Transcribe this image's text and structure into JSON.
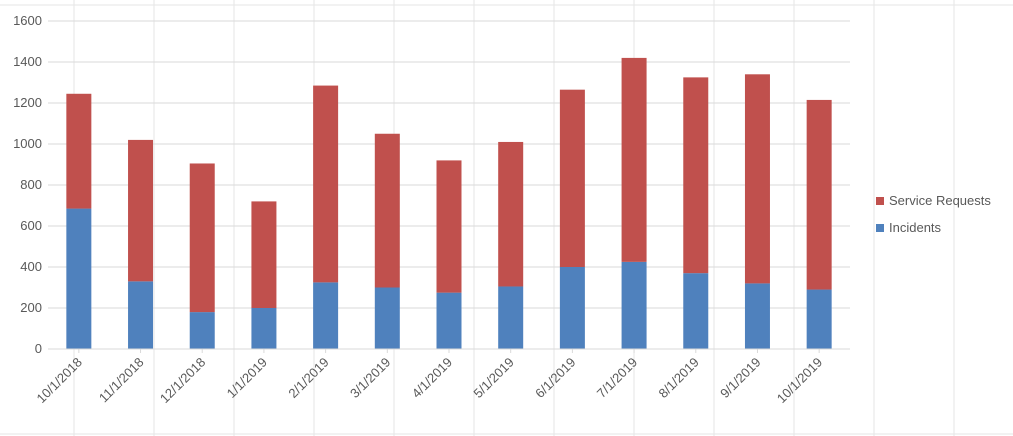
{
  "chart_data": {
    "type": "bar",
    "stacked": true,
    "categories": [
      "10/1/2018",
      "11/1/2018",
      "12/1/2018",
      "1/1/2019",
      "2/1/2019",
      "3/1/2019",
      "4/1/2019",
      "5/1/2019",
      "6/1/2019",
      "7/1/2019",
      "8/1/2019",
      "9/1/2019",
      "10/1/2019"
    ],
    "series": [
      {
        "name": "Incidents",
        "color": "#4F81BD",
        "values": [
          685,
          330,
          180,
          200,
          325,
          300,
          275,
          305,
          400,
          425,
          370,
          320,
          290
        ]
      },
      {
        "name": "Service Requests",
        "color": "#C0504D",
        "values": [
          560,
          690,
          725,
          520,
          960,
          750,
          645,
          705,
          865,
          995,
          955,
          1020,
          925
        ]
      }
    ],
    "ylim": [
      0,
      1600
    ],
    "yticks": [
      0,
      200,
      400,
      600,
      800,
      1000,
      1200,
      1400,
      1600
    ],
    "grid": true,
    "legend": "right",
    "title": "",
    "xlabel": "",
    "ylabel": ""
  }
}
